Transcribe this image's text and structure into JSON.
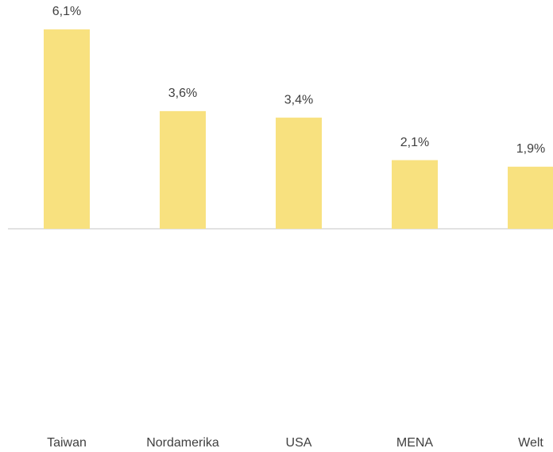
{
  "chart_data": {
    "type": "bar",
    "categories": [
      "Taiwan",
      "Nordamerika",
      "USA",
      "MENA",
      "Welt"
    ],
    "values": [
      6.1,
      3.6,
      3.4,
      2.1,
      1.9
    ],
    "value_labels": [
      "6,1%",
      "3,6%",
      "3,4%",
      "2,1%",
      "1,9%"
    ],
    "color": "#f8e17f"
  }
}
